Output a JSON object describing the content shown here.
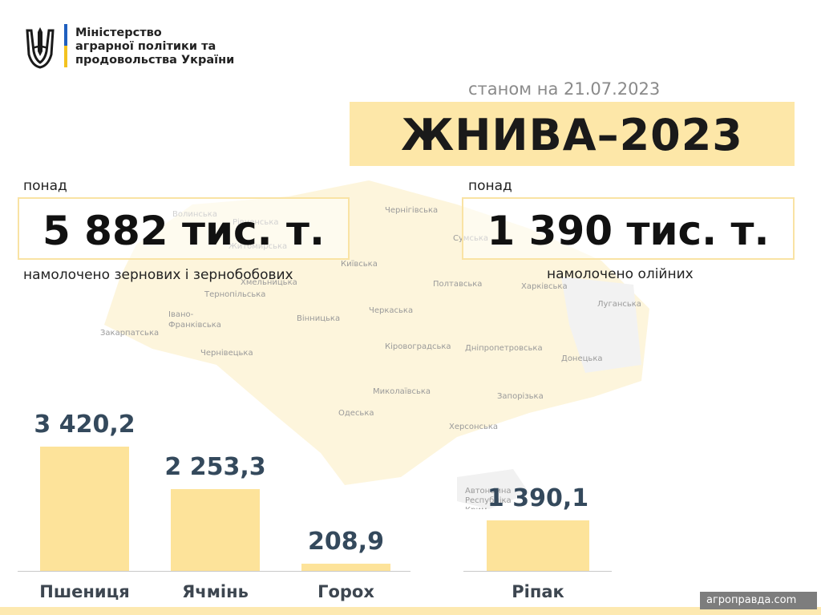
{
  "header": {
    "ministry_line1": "Міністерство",
    "ministry_line2": "аграрної політики та",
    "ministry_line3": "продовольства України",
    "date_text": "станом на 21.07.2023",
    "title": "ЖНИВА–2023"
  },
  "stats": {
    "grain": {
      "prefix": "понад",
      "value": "5 882 тис. т.",
      "caption": "намолочено зернових і зернобобових"
    },
    "oil": {
      "prefix": "понад",
      "value": "1 390 тис. т.",
      "caption": "намолочено олійних"
    }
  },
  "map_regions": [
    "Волинська",
    "Рівненська",
    "Житомирська",
    "Чернігівська",
    "Сумська",
    "Київська",
    "Хмельницька",
    "Тернопільська",
    "Полтавська",
    "Харківська",
    "Луганська",
    "Івано-",
    "Франківська",
    "Вінницька",
    "Черкаська",
    "Закарпатська",
    "Чернівецька",
    "Кіровоградська",
    "Дніпропетровська",
    "Донецька",
    "Миколаївська",
    "Запорізька",
    "Одеська",
    "Херсонська",
    "Автономна",
    "Республіка",
    "Крим"
  ],
  "chart_data": {
    "type": "bar",
    "categories": [
      "Пшениця",
      "Ячмінь",
      "Горох",
      "Ріпак"
    ],
    "values": [
      3420.2,
      2253.3,
      208.9,
      1390.1
    ],
    "value_labels": [
      "3 420,2",
      "2 253,3",
      "208,9",
      "1 390,1"
    ],
    "title": "",
    "xlabel": "",
    "ylabel": "",
    "ylim": [
      0,
      3420.2
    ],
    "grid": false,
    "bar_color": "#fde39a"
  },
  "colors": {
    "accent_yellow": "#fde7a8",
    "flag_blue": "#1f5fbf",
    "flag_yellow": "#f3c21f",
    "value_text": "#34495c"
  },
  "watermark": "агроправда.com"
}
